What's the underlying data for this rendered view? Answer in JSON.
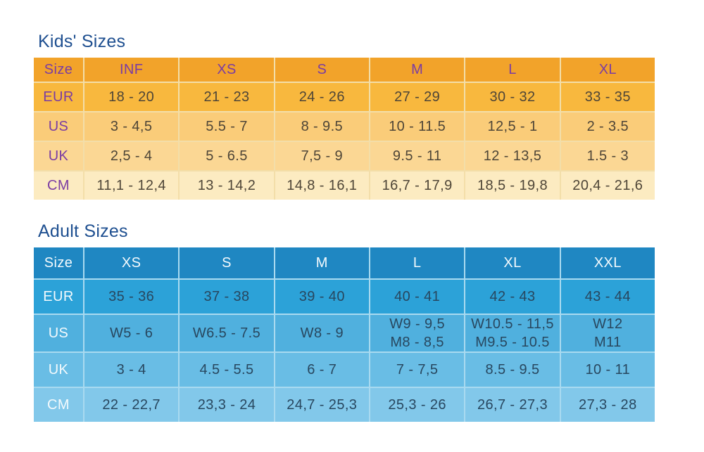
{
  "page_title_color": "#1e4f90",
  "chart_data": [
    {
      "type": "table",
      "id": "kids",
      "title": "Kids' Sizes",
      "header": [
        "Size",
        "INF",
        "XS",
        "S",
        "M",
        "L",
        "XL"
      ],
      "rows": [
        {
          "label": "EUR",
          "values": [
            "18 - 20",
            "21 - 23",
            "24 - 26",
            "27 - 29",
            "30 - 32",
            "33 - 35"
          ]
        },
        {
          "label": "US",
          "values": [
            "3 - 4,5",
            "5.5 - 7",
            "8 - 9.5",
            "10 - 11.5",
            "12,5 - 1",
            "2 - 3.5"
          ]
        },
        {
          "label": "UK",
          "values": [
            "2,5 - 4",
            "5 - 6.5",
            "7,5 - 9",
            "9.5 - 11",
            "12 - 13,5",
            "1.5 - 3"
          ]
        },
        {
          "label": "CM",
          "values": [
            "11,1 - 12,4",
            "13 - 14,2",
            "14,8 - 16,1",
            "16,7 - 17,9",
            "18,5 - 19,8",
            "20,4 - 21,6"
          ]
        }
      ],
      "colors": {
        "header_bg": "#f2a32a",
        "row_bgs": [
          "#f8b83e",
          "#facc79",
          "#fbd794",
          "#fcebc1"
        ],
        "label_color": "#7a3ca3",
        "data_color": "#4e4537",
        "separator": "#f3dea9"
      }
    },
    {
      "type": "table",
      "id": "adult",
      "title": "Adult Sizes",
      "header": [
        "Size",
        "XS",
        "S",
        "M",
        "L",
        "XL",
        "XXL"
      ],
      "rows": [
        {
          "label": "EUR",
          "values": [
            "35 - 36",
            "37 - 38",
            "39 - 40",
            "40 - 41",
            "42 - 43",
            "43 - 44"
          ]
        },
        {
          "label": "US",
          "values": [
            "W5 - 6",
            "W6.5 - 7.5",
            "W8 - 9",
            [
              "W9 - 9,5",
              "M8 - 8,5"
            ],
            [
              "W10.5 - 11,5",
              "M9.5 - 10.5"
            ],
            [
              "W12",
              "M11"
            ]
          ]
        },
        {
          "label": "UK",
          "values": [
            "3 - 4",
            "4.5 - 5.5",
            "6 - 7",
            "7 - 7,5",
            "8.5 - 9.5",
            "10 - 11"
          ]
        },
        {
          "label": "CM",
          "values": [
            "22 - 22,7",
            "23,3 - 24",
            "24,7 - 25,3",
            "25,3 - 26",
            "26,7 - 27,3",
            "27,3 - 28"
          ]
        }
      ],
      "colors": {
        "header_bg": "#1f87c2",
        "row_bgs": [
          "#2ca2d8",
          "#50b0de",
          "#69bde5",
          "#82c8ea"
        ],
        "label_color": "#f4fafd",
        "data_color": "#28475f",
        "separator": "#a9daf0"
      }
    }
  ]
}
